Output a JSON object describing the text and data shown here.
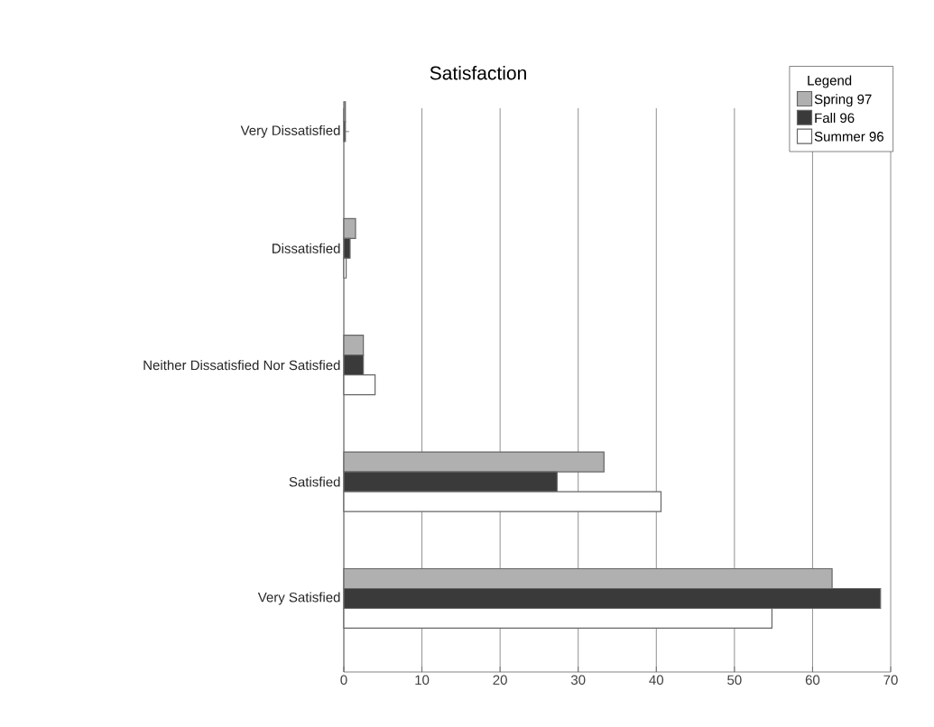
{
  "chart_data": {
    "type": "bar",
    "orientation": "horizontal",
    "title": "Satisfaction",
    "legend_title": "Legend",
    "categories": [
      "Very Dissatisfied",
      "Dissatisfied",
      "Neither Dissatisfied Nor Satisfied",
      "Satisfied",
      "Very Satisfied"
    ],
    "series": [
      {
        "name": "Spring 97",
        "color": "#b0b0b0",
        "values": [
          0.2,
          1.5,
          2.5,
          33.3,
          62.5
        ]
      },
      {
        "name": "Fall 96",
        "color": "#3a3a3a",
        "values": [
          0.2,
          0.8,
          2.5,
          27.3,
          68.7
        ]
      },
      {
        "name": "Summer 96",
        "color": "#ffffff",
        "values": [
          0,
          0.3,
          4.0,
          40.6,
          54.8
        ]
      }
    ],
    "xlim": [
      0,
      70
    ],
    "xticks": [
      0,
      10,
      20,
      30,
      40,
      50,
      60,
      70
    ],
    "grid": "x",
    "legend": "top right"
  }
}
